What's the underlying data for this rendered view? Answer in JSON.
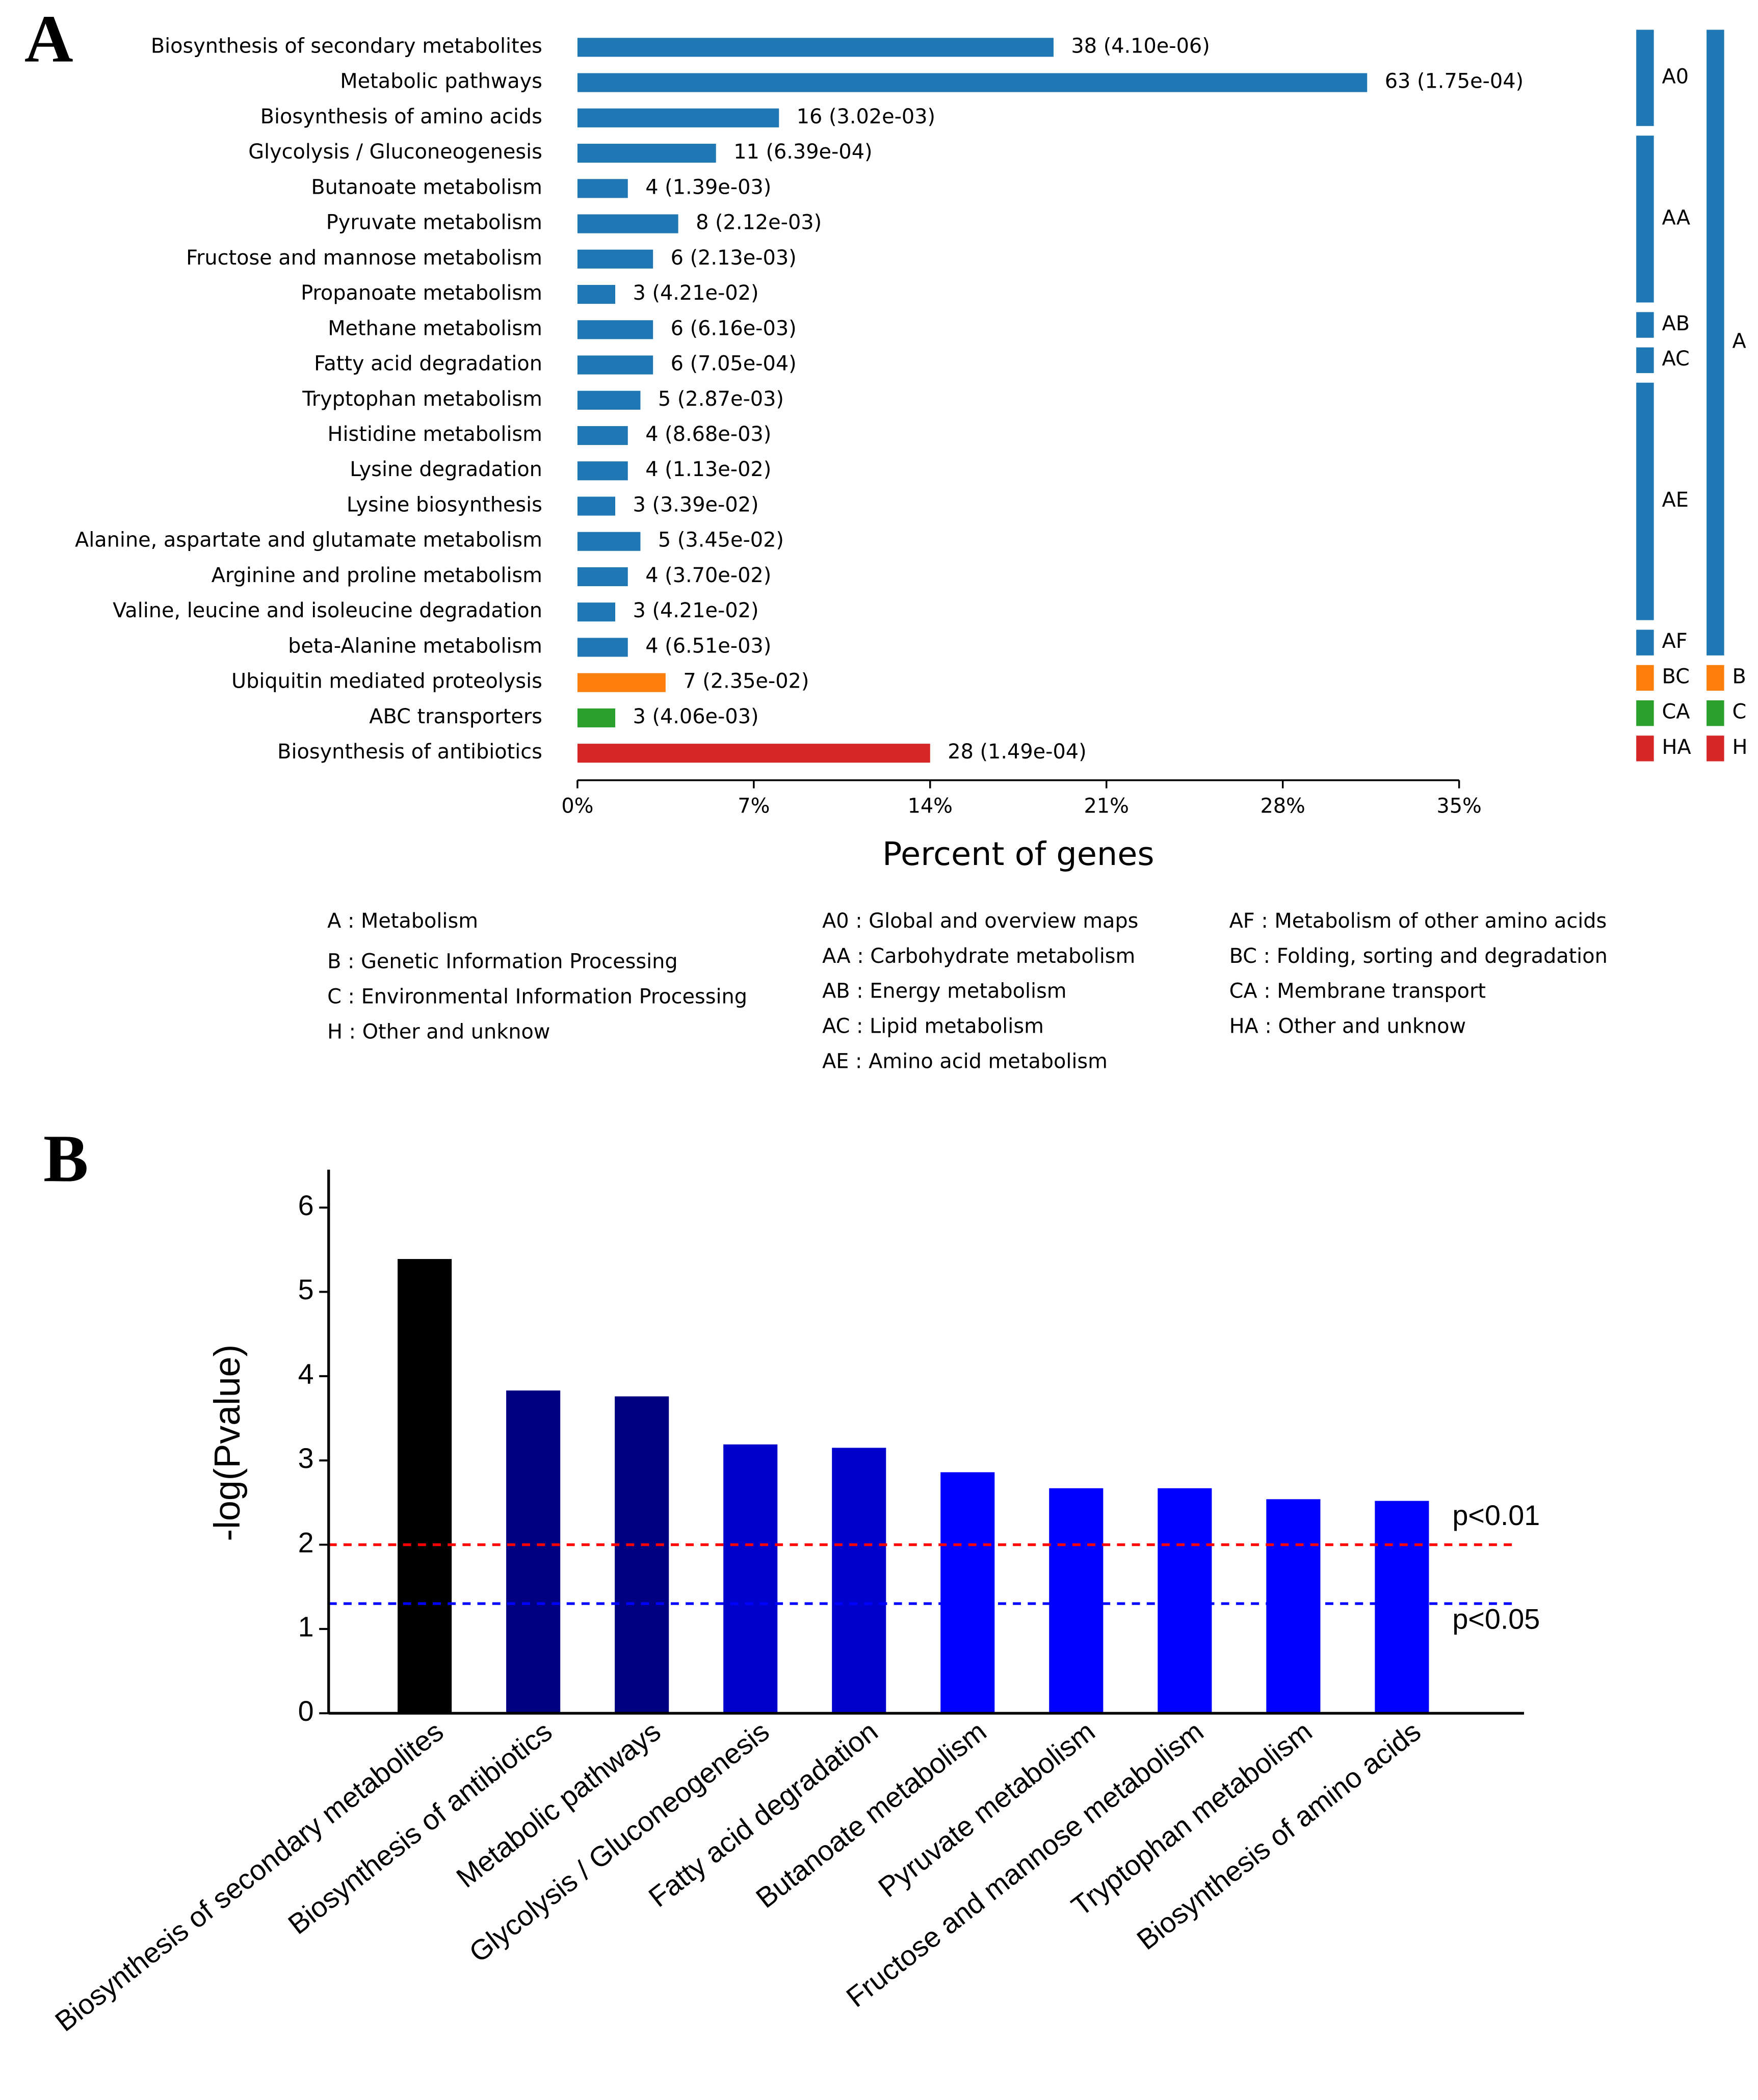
{
  "chart_data": [
    {
      "type": "bar",
      "orientation": "horizontal",
      "panel_label": "A",
      "categories": [
        "Biosynthesis of secondary metabolites",
        "Metabolic pathways",
        "Biosynthesis of amino acids",
        "Glycolysis / Gluconeogenesis",
        "Butanoate metabolism",
        "Pyruvate metabolism",
        "Fructose and mannose metabolism",
        "Propanoate metabolism",
        "Methane metabolism",
        "Fatty acid degradation",
        "Tryptophan metabolism",
        "Histidine metabolism",
        "Lysine degradation",
        "Lysine biosynthesis",
        "Alanine, aspartate and glutamate metabolism",
        "Arginine and proline metabolism",
        "Valine, leucine and isoleucine degradation",
        "beta-Alanine metabolism",
        "Ubiquitin mediated proteolysis",
        "ABC transporters",
        "Biosynthesis of antibiotics"
      ],
      "values": [
        18.9,
        31.35,
        8.0,
        5.5,
        2.0,
        4.0,
        3.0,
        1.5,
        3.0,
        3.0,
        2.5,
        2.0,
        2.0,
        1.5,
        2.5,
        2.0,
        1.5,
        2.0,
        3.5,
        1.5,
        14.0
      ],
      "bar_labels": [
        "38 (4.10e-06)",
        "63 (1.75e-04)",
        "16 (3.02e-03)",
        "11 (6.39e-04)",
        "4 (1.39e-03)",
        "8 (2.12e-03)",
        "6 (2.13e-03)",
        "3 (4.21e-02)",
        "6 (6.16e-03)",
        "6 (7.05e-04)",
        "5 (2.87e-03)",
        "4 (8.68e-03)",
        "4 (1.13e-02)",
        "3 (3.39e-02)",
        "5 (3.45e-02)",
        "4 (3.70e-02)",
        "3 (4.21e-02)",
        "4 (6.51e-03)",
        "7 (2.35e-02)",
        "3 (4.06e-03)",
        "28 (1.49e-04)"
      ],
      "colors": [
        "#1f77b4",
        "#1f77b4",
        "#1f77b4",
        "#1f77b4",
        "#1f77b4",
        "#1f77b4",
        "#1f77b4",
        "#1f77b4",
        "#1f77b4",
        "#1f77b4",
        "#1f77b4",
        "#1f77b4",
        "#1f77b4",
        "#1f77b4",
        "#1f77b4",
        "#1f77b4",
        "#1f77b4",
        "#1f77b4",
        "#ff7f0e",
        "#2ca02c",
        "#d62728"
      ],
      "subclass": [
        "A0",
        "A0",
        "A0",
        "AA",
        "AA",
        "AA",
        "AA",
        "AA",
        "AB",
        "AC",
        "AE",
        "AE",
        "AE",
        "AE",
        "AE",
        "AE",
        "AE",
        "AF",
        "BC",
        "CA",
        "HA"
      ],
      "class": [
        "A",
        "A",
        "A",
        "A",
        "A",
        "A",
        "A",
        "A",
        "A",
        "A",
        "A",
        "A",
        "A",
        "A",
        "A",
        "A",
        "A",
        "A",
        "B",
        "C",
        "H"
      ],
      "xlim": [
        0,
        35
      ],
      "xticks": [
        {
          "value": 0,
          "label": "0%"
        },
        {
          "value": 7,
          "label": "7%"
        },
        {
          "value": 14,
          "label": "14%"
        },
        {
          "value": 21,
          "label": "21%"
        },
        {
          "value": 28,
          "label": "28%"
        },
        {
          "value": 35,
          "label": "35%"
        }
      ],
      "xlabel": "Percent of genes",
      "legend": [
        [
          "A : Metabolism",
          "B : Genetic Information Processing",
          "C : Environmental Information Processing",
          "H : Other and unknow"
        ],
        [
          "A0 : Global and overview maps",
          "AA : Carbohydrate metabolism",
          "AB : Energy metabolism",
          "AC : Lipid metabolism",
          "AE : Amino acid metabolism"
        ],
        [
          "AF : Metabolism of other amino acids",
          "BC : Folding, sorting and degradation",
          "CA : Membrane transport",
          "HA : Other and unknow"
        ]
      ]
    },
    {
      "type": "bar",
      "panel_label": "B",
      "categories": [
        "Biosynthesis of secondary metabolites",
        "Biosynthesis of antibiotics",
        "Metabolic pathways",
        "Glycolysis / Gluconeogenesis",
        "Fatty acid degradation",
        "Butanoate metabolism",
        "Pyruvate metabolism",
        "Fructose and mannose metabolism",
        "Tryptophan metabolism",
        "Biosynthesis of amino acids"
      ],
      "values": [
        5.39,
        3.83,
        3.76,
        3.19,
        3.15,
        2.86,
        2.67,
        2.67,
        2.54,
        2.52
      ],
      "colors": [
        "#000000",
        "#000080",
        "#000080",
        "#0000cd",
        "#0000cd",
        "#0000ff",
        "#0000ff",
        "#0000ff",
        "#0000ff",
        "#0000ff"
      ],
      "ylim": [
        0,
        6.45
      ],
      "yticks": [
        0,
        1,
        2,
        3,
        4,
        5,
        6
      ],
      "ylabel": "-log(Pvalue)",
      "reference_lines": [
        {
          "value": 2,
          "label": "p<0.01",
          "color": "#ff0000"
        },
        {
          "value": 1.301,
          "label": "p<0.05",
          "color": "#0000ff"
        }
      ]
    }
  ]
}
